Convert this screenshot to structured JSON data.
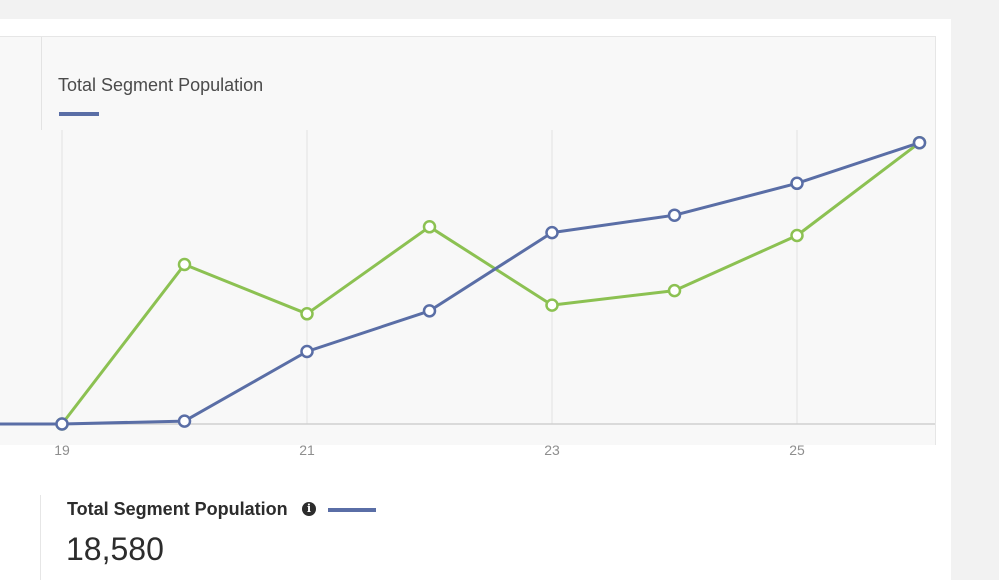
{
  "legend": {
    "title": "Total Segment Population"
  },
  "metric": {
    "label": "Total Segment Population",
    "value": "18,580",
    "icon": "info-icon"
  },
  "colors": {
    "blue": "#5a6ea6",
    "green": "#8cc152"
  },
  "chart_data": {
    "type": "line",
    "x": [
      18,
      19,
      20,
      21,
      22,
      23,
      24,
      25,
      26
    ],
    "xticks": [
      "19",
      "21",
      "23",
      "25"
    ],
    "xtick_values": [
      19,
      21,
      23,
      25
    ],
    "xlim": [
      18.5,
      26
    ],
    "ylim": [
      0,
      100
    ],
    "grid": true,
    "series": [
      {
        "name": "Total Segment Population",
        "color": "#5a6ea6",
        "values": [
          0,
          0,
          1,
          25,
          39,
          66,
          72,
          83,
          97
        ]
      },
      {
        "color": "#8cc152",
        "values": [
          0,
          0,
          55,
          38,
          68,
          41,
          46,
          65,
          97
        ]
      }
    ]
  }
}
